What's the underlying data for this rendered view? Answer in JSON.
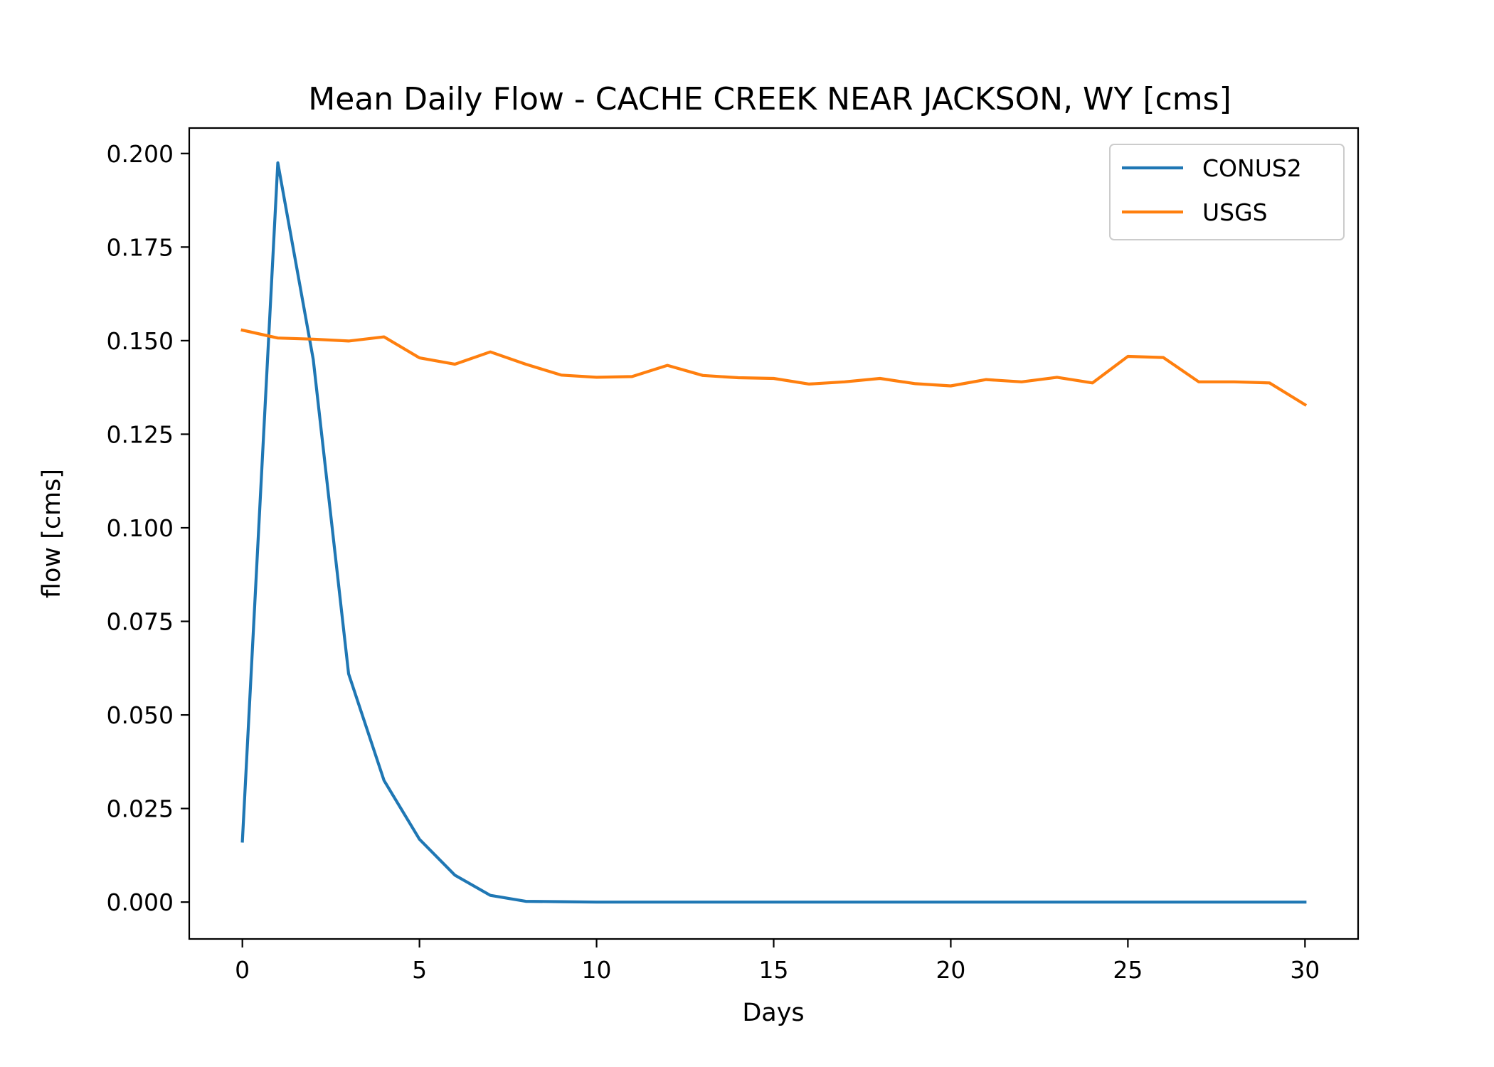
{
  "chart_data": {
    "type": "line",
    "title": "Mean Daily Flow - CACHE CREEK NEAR JACKSON, WY [cms]",
    "xlabel": "Days",
    "ylabel": "flow [cms]",
    "xlim": [
      -1.5,
      31.5
    ],
    "ylim": [
      -0.00985,
      0.2068
    ],
    "xticks": [
      0,
      5,
      10,
      15,
      20,
      25,
      30
    ],
    "xtick_labels": [
      "0",
      "5",
      "10",
      "15",
      "20",
      "25",
      "30"
    ],
    "yticks": [
      0.0,
      0.025,
      0.05,
      0.075,
      0.1,
      0.125,
      0.15,
      0.175,
      0.2
    ],
    "ytick_labels": [
      "0.000",
      "0.025",
      "0.050",
      "0.075",
      "0.100",
      "0.125",
      "0.150",
      "0.175",
      "0.200"
    ],
    "grid": false,
    "legend_position": "top-right",
    "x": [
      0,
      1,
      2,
      3,
      4,
      5,
      6,
      7,
      8,
      9,
      10,
      11,
      12,
      13,
      14,
      15,
      16,
      17,
      18,
      19,
      20,
      21,
      22,
      23,
      24,
      25,
      26,
      27,
      28,
      29,
      30
    ],
    "series": [
      {
        "name": "CONUS2",
        "color": "#1f77b4",
        "values": [
          0.0163,
          0.1975,
          0.145,
          0.061,
          0.0325,
          0.0168,
          0.0072,
          0.0018,
          0.0002,
          0.0001,
          0.0,
          0.0,
          0.0,
          0.0,
          0.0,
          0.0,
          0.0,
          0.0,
          0.0,
          0.0,
          0.0,
          0.0,
          0.0,
          0.0,
          0.0,
          0.0,
          0.0,
          0.0,
          0.0,
          0.0,
          0.0
        ]
      },
      {
        "name": "USGS",
        "color": "#ff7f0e",
        "values": [
          0.1528,
          0.1507,
          0.1504,
          0.1499,
          0.151,
          0.1454,
          0.1437,
          0.147,
          0.1437,
          0.1408,
          0.1402,
          0.1404,
          0.1434,
          0.1407,
          0.1401,
          0.1399,
          0.1384,
          0.139,
          0.1399,
          0.1385,
          0.1379,
          0.1396,
          0.139,
          0.1402,
          0.1387,
          0.1458,
          0.1455,
          0.139,
          0.139,
          0.1387,
          0.1329
        ]
      }
    ]
  }
}
